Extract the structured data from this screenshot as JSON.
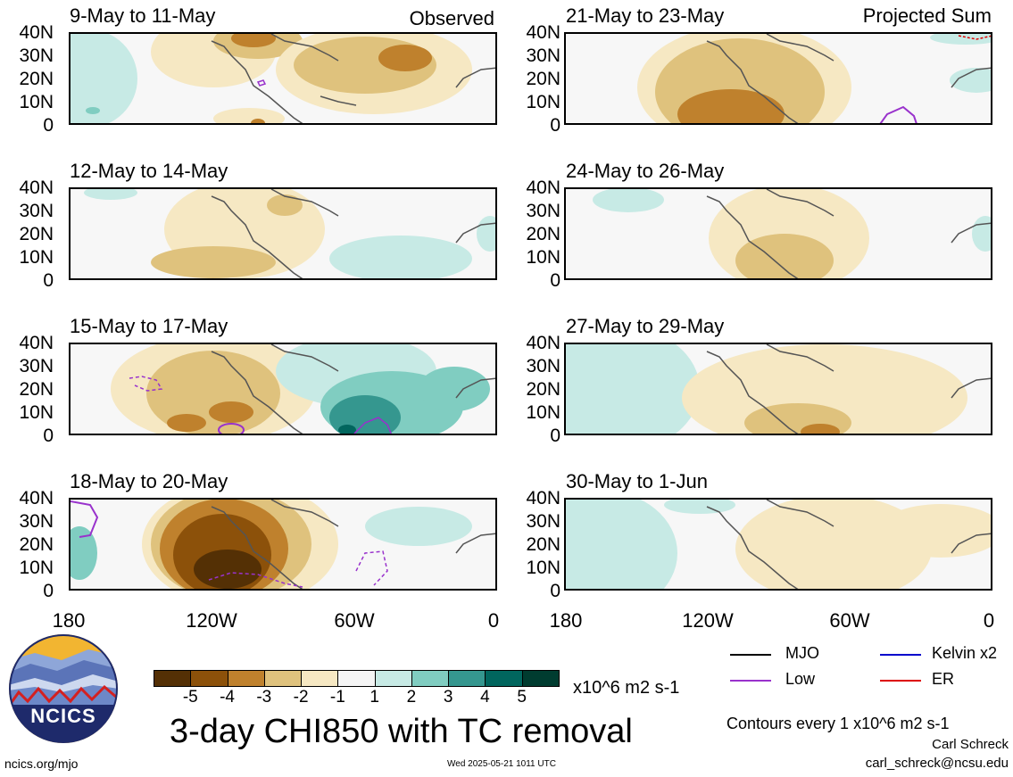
{
  "panels_left": [
    {
      "title": "9-May to 11-May",
      "corner": "Observed"
    },
    {
      "title": "12-May to 14-May",
      "corner": ""
    },
    {
      "title": "15-May to 17-May",
      "corner": ""
    },
    {
      "title": "18-May to 20-May",
      "corner": ""
    }
  ],
  "panels_right": [
    {
      "title": "21-May to 23-May",
      "corner": "Projected Sum"
    },
    {
      "title": "24-May to 26-May",
      "corner": ""
    },
    {
      "title": "27-May to 29-May",
      "corner": ""
    },
    {
      "title": "30-May to 1-Jun",
      "corner": ""
    }
  ],
  "y_ticks": [
    "40N",
    "30N",
    "20N",
    "10N",
    "0"
  ],
  "x_ticks": [
    "180",
    "120W",
    "60W",
    "0"
  ],
  "colorbar": {
    "labels": [
      "-5",
      "-4",
      "-3",
      "-2",
      "-1",
      "1",
      "2",
      "3",
      "4",
      "5"
    ],
    "colors": [
      "#543005",
      "#8c510a",
      "#bf812d",
      "#dfc27d",
      "#f6e8c3",
      "#f5f5f5",
      "#c7eae5",
      "#80cdc1",
      "#35978f",
      "#01665e",
      "#003c30"
    ],
    "units": "x10^6 m2 s-1"
  },
  "main_title": "3-day CHI850 with TC removal",
  "legend": [
    {
      "label": "MJO",
      "color": "#000000"
    },
    {
      "label": "Kelvin x2",
      "color": "#0000cc"
    },
    {
      "label": "Low",
      "color": "#9932cc"
    },
    {
      "label": "ER",
      "color": "#dd0000"
    }
  ],
  "contour_note": "Contours every 1 x10^6 m2 s-1",
  "author": "Carl Schreck",
  "email": "carl_schreck@ncsu.edu",
  "website": "ncics.org/mjo",
  "timestamp": "Wed 2025-05-21 1011 UTC",
  "logo_text": "NCICS"
}
